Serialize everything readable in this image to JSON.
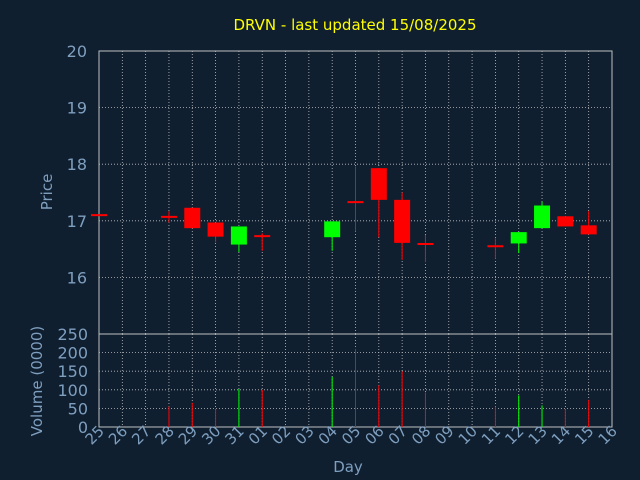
{
  "title": "DRVN - last updated 15/08/2025",
  "colors": {
    "background": "#0f1f30",
    "title": "#ffff00",
    "axis_text": "#7f9fbf",
    "grid": "#bfbfbf",
    "up": "#00ff00",
    "down": "#ff0000"
  },
  "chart_data": [
    {
      "type": "candlestick",
      "ylabel": "Price",
      "ylim": [
        15.0,
        20.0
      ],
      "yticks": [
        16,
        17,
        18,
        19,
        20
      ],
      "grid": true,
      "x": [
        "25",
        "26",
        "27",
        "28",
        "29",
        "30",
        "31",
        "01",
        "02",
        "03",
        "04",
        "05",
        "06",
        "07",
        "08",
        "09",
        "10",
        "11",
        "12",
        "13",
        "14",
        "15",
        "16"
      ],
      "candles": [
        {
          "day": "25",
          "open": 17.1,
          "close": 17.1,
          "high": 17.1,
          "low": 17.1
        },
        {
          "day": "28",
          "open": 17.07,
          "close": 17.07,
          "high": 17.17,
          "low": 16.97
        },
        {
          "day": "29",
          "open": 17.23,
          "close": 16.87,
          "high": 17.23,
          "low": 16.87
        },
        {
          "day": "30",
          "open": 16.97,
          "close": 16.72,
          "high": 16.97,
          "low": 16.62
        },
        {
          "day": "31",
          "open": 16.58,
          "close": 16.9,
          "high": 16.9,
          "low": 16.45
        },
        {
          "day": "01",
          "open": 16.73,
          "close": 16.73,
          "high": 16.78,
          "low": 16.47
        },
        {
          "day": "04",
          "open": 16.71,
          "close": 16.99,
          "high": 16.99,
          "low": 16.47
        },
        {
          "day": "05",
          "open": 17.33,
          "close": 17.33,
          "high": 17.96,
          "low": 16.81
        },
        {
          "day": "06",
          "open": 17.93,
          "close": 17.37,
          "high": 17.93,
          "low": 16.71
        },
        {
          "day": "07",
          "open": 17.37,
          "close": 16.61,
          "high": 17.5,
          "low": 16.31
        },
        {
          "day": "08",
          "open": 16.59,
          "close": 16.59,
          "high": 16.75,
          "low": 16.27
        },
        {
          "day": "11",
          "open": 16.55,
          "close": 16.55,
          "high": 16.69,
          "low": 16.33
        },
        {
          "day": "12",
          "open": 16.6,
          "close": 16.8,
          "high": 16.8,
          "low": 16.43
        },
        {
          "day": "13",
          "open": 16.87,
          "close": 17.27,
          "high": 17.34,
          "low": 16.87
        },
        {
          "day": "14",
          "open": 17.08,
          "close": 16.9,
          "high": 17.08,
          "low": 16.9
        },
        {
          "day": "15",
          "open": 16.92,
          "close": 16.76,
          "high": 17.17,
          "low": 16.76
        }
      ]
    },
    {
      "type": "bar",
      "ylabel": "Volume (0000)",
      "xlabel": "Day",
      "ylim": [
        0,
        250
      ],
      "yticks": [
        0,
        50,
        100,
        150,
        200,
        250
      ],
      "grid": true,
      "x": [
        "25",
        "26",
        "27",
        "28",
        "29",
        "30",
        "31",
        "01",
        "02",
        "03",
        "04",
        "05",
        "06",
        "07",
        "08",
        "09",
        "10",
        "11",
        "12",
        "13",
        "14",
        "15",
        "16"
      ],
      "bars": [
        {
          "day": "28",
          "value": 55,
          "direction": "down"
        },
        {
          "day": "29",
          "value": 65,
          "direction": "down"
        },
        {
          "day": "30",
          "value": 48,
          "direction": "down"
        },
        {
          "day": "31",
          "value": 102,
          "direction": "up"
        },
        {
          "day": "01",
          "value": 100,
          "direction": "down"
        },
        {
          "day": "04",
          "value": 135,
          "direction": "up"
        },
        {
          "day": "05",
          "value": 210,
          "direction": "down"
        },
        {
          "day": "06",
          "value": 112,
          "direction": "down"
        },
        {
          "day": "07",
          "value": 150,
          "direction": "down"
        },
        {
          "day": "08",
          "value": 93,
          "direction": "down"
        },
        {
          "day": "11",
          "value": 55,
          "direction": "down"
        },
        {
          "day": "12",
          "value": 85,
          "direction": "up"
        },
        {
          "day": "13",
          "value": 58,
          "direction": "up"
        },
        {
          "day": "14",
          "value": 48,
          "direction": "down"
        },
        {
          "day": "15",
          "value": 73,
          "direction": "down"
        }
      ]
    }
  ]
}
